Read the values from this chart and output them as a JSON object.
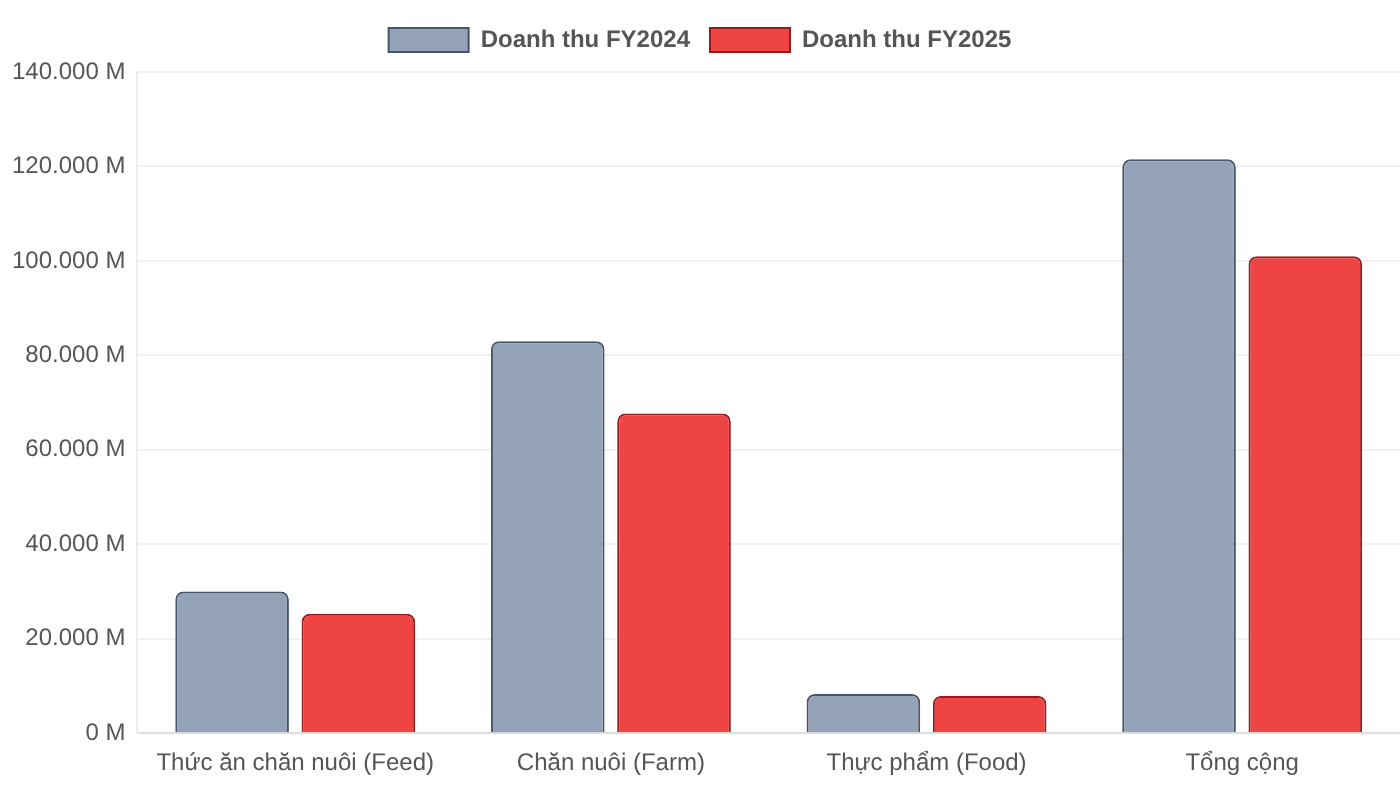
{
  "chart_data": {
    "type": "bar",
    "categories": [
      "Thức ăn chăn nuôi (Feed)",
      "Chăn nuôi (Farm)",
      "Thực phẩm (Food)",
      "Tổng cộng"
    ],
    "series": [
      {
        "name": "Doanh thu FY2024",
        "color": "#94a3b8",
        "values": [
          30000,
          83000,
          8300,
          121500
        ]
      },
      {
        "name": "Doanh thu FY2025",
        "color": "#ef4444",
        "values": [
          25300,
          67700,
          7900,
          101000
        ]
      }
    ],
    "ylim": [
      0,
      140000
    ],
    "yticks": [
      {
        "value": 0,
        "label": "0 M"
      },
      {
        "value": 20000,
        "label": "20.000 M"
      },
      {
        "value": 40000,
        "label": "40.000 M"
      },
      {
        "value": 60000,
        "label": "60.000 M"
      },
      {
        "value": 80000,
        "label": "80.000 M"
      },
      {
        "value": 100000,
        "label": "100.000 M"
      },
      {
        "value": 120000,
        "label": "120.000 M"
      },
      {
        "value": 140000,
        "label": "140.000 M"
      }
    ],
    "grid": "y",
    "legend": "top"
  }
}
